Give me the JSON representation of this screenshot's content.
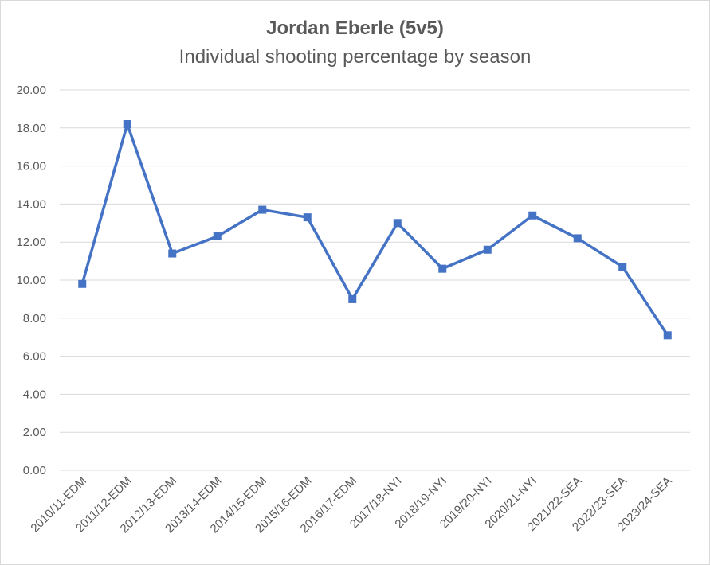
{
  "chart_data": {
    "type": "line",
    "title": "Jordan Eberle (5v5)",
    "subtitle": "Individual shooting percentage by season",
    "categories": [
      "2010/11-EDM",
      "2011/12-EDM",
      "2012/13-EDM",
      "2013/14-EDM",
      "2014/15-EDM",
      "2015/16-EDM",
      "2016/17-EDM",
      "2017/18-NYI",
      "2018/19-NYI",
      "2019/20-NYI",
      "2020/21-NYI",
      "2021/22-SEA",
      "2022/23-SEA",
      "2023/24-SEA"
    ],
    "series": [
      {
        "values": [
          9.8,
          18.2,
          11.4,
          12.3,
          13.7,
          13.3,
          9.0,
          13.0,
          10.6,
          11.6,
          13.4,
          12.2,
          10.7,
          7.1
        ]
      }
    ],
    "ylim": [
      0,
      20
    ],
    "yticks": [
      "0.00",
      "2.00",
      "4.00",
      "6.00",
      "8.00",
      "10.00",
      "12.00",
      "14.00",
      "16.00",
      "18.00",
      "20.00"
    ],
    "grid": true,
    "legend": "none",
    "line_color": "#4472c4",
    "grid_color": "#d9d9d9",
    "text_color": "#595959"
  }
}
